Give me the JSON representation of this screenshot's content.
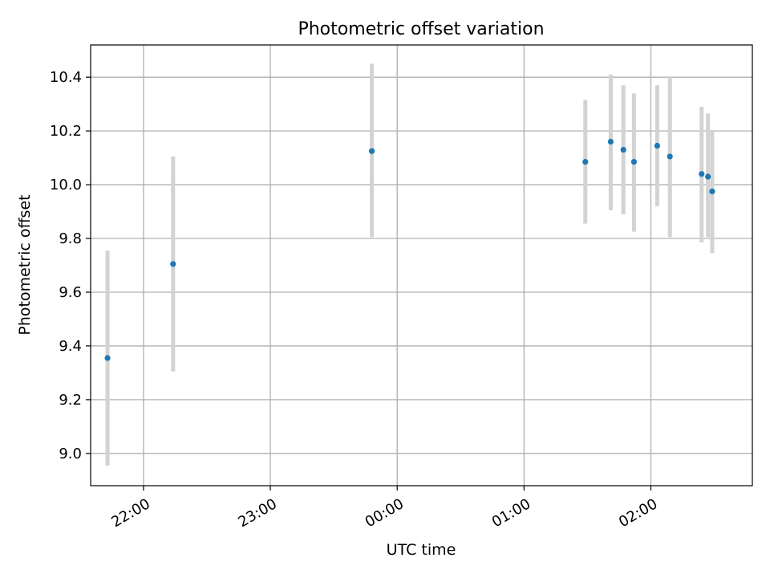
{
  "chart_data": {
    "type": "scatter",
    "title": "Photometric offset variation",
    "xlabel": "UTC time",
    "ylabel": "Photometric offset",
    "x_scale": "time",
    "x_range": [
      "21:35",
      "02:48"
    ],
    "ylim": [
      8.88,
      10.52
    ],
    "x_ticks": [
      {
        "time": "22:00",
        "label": "22:00"
      },
      {
        "time": "23:00",
        "label": "23:00"
      },
      {
        "time": "00:00",
        "label": "00:00"
      },
      {
        "time": "01:00",
        "label": "01:00"
      },
      {
        "time": "02:00",
        "label": "02:00"
      }
    ],
    "y_ticks": [
      {
        "value": 9.0,
        "label": "9.0"
      },
      {
        "value": 9.2,
        "label": "9.2"
      },
      {
        "value": 9.4,
        "label": "9.4"
      },
      {
        "value": 9.6,
        "label": "9.6"
      },
      {
        "value": 9.8,
        "label": "9.8"
      },
      {
        "value": 10.0,
        "label": "10.0"
      },
      {
        "value": 10.2,
        "label": "10.2"
      },
      {
        "value": 10.4,
        "label": "10.4"
      }
    ],
    "grid": true,
    "marker_color": "#1f77b4",
    "errorbar_color": "#d3d3d3",
    "points": [
      {
        "time": "21:43",
        "y": 9.355,
        "err_low": 8.955,
        "err_high": 9.755
      },
      {
        "time": "22:14",
        "y": 9.705,
        "err_low": 9.305,
        "err_high": 10.105
      },
      {
        "time": "23:48",
        "y": 10.125,
        "err_low": 9.805,
        "err_high": 10.45
      },
      {
        "time": "01:29",
        "y": 10.085,
        "err_low": 9.855,
        "err_high": 10.315
      },
      {
        "time": "01:41",
        "y": 10.16,
        "err_low": 9.905,
        "err_high": 10.41
      },
      {
        "time": "01:47",
        "y": 10.13,
        "err_low": 9.89,
        "err_high": 10.37
      },
      {
        "time": "01:52",
        "y": 10.085,
        "err_low": 9.825,
        "err_high": 10.34
      },
      {
        "time": "02:03",
        "y": 10.145,
        "err_low": 9.92,
        "err_high": 10.37
      },
      {
        "time": "02:09",
        "y": 10.105,
        "err_low": 9.805,
        "err_high": 10.4
      },
      {
        "time": "02:24",
        "y": 10.04,
        "err_low": 9.785,
        "err_high": 10.29
      },
      {
        "time": "02:27",
        "y": 10.03,
        "err_low": 9.805,
        "err_high": 10.265
      },
      {
        "time": "02:29",
        "y": 9.975,
        "err_low": 9.745,
        "err_high": 10.2
      }
    ]
  }
}
